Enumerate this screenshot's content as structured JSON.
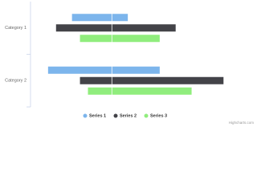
{
  "chart_data": {
    "type": "columnrange",
    "inverted": true,
    "categories": [
      "Category 1",
      "Category 2"
    ],
    "series": [
      {
        "name": "Series 1",
        "color": "#7cb5ec",
        "values": [
          [
            -5,
            2
          ],
          [
            -8,
            6
          ]
        ]
      },
      {
        "name": "Series 2",
        "color": "#434348",
        "values": [
          [
            -7,
            8
          ],
          [
            -4,
            14
          ]
        ]
      },
      {
        "name": "Series 3",
        "color": "#90ed7d",
        "values": [
          [
            -4,
            6
          ],
          [
            -3,
            10
          ]
        ]
      }
    ],
    "xlim": [
      -10,
      18
    ],
    "credits": "Highcharts.com"
  }
}
